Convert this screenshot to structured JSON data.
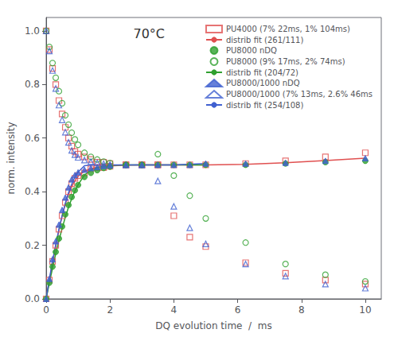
{
  "chart_data": {
    "type": "scatter",
    "annotation": "70°C",
    "xlabel": "DQ evolution time  /  ms",
    "ylabel": "norm. intensity",
    "xlim": [
      0,
      10.5
    ],
    "ylim": [
      0.0,
      1.05
    ],
    "xticks": [
      0,
      2,
      4,
      6,
      8,
      10
    ],
    "yticks": [
      {
        "value": 0.0,
        "label": "0.0"
      },
      0.2,
      0.4,
      0.6,
      0.8,
      {
        "value": 1.0,
        "label": "1.0"
      }
    ],
    "grid": false,
    "legend": "upper right",
    "series": [
      {
        "name": "PU4000 (7% 22ms, 1% 104ms)",
        "type": "scatter",
        "marker": "square-open",
        "color": "#e05050",
        "x": [
          0.0,
          0.1,
          0.2,
          0.3,
          0.4,
          0.5,
          0.6,
          0.7,
          0.8,
          0.9,
          1.0,
          1.2,
          1.4,
          1.6,
          1.8,
          2.0,
          2.5,
          3.0,
          3.5,
          4.0,
          4.5,
          5.0,
          6.25,
          7.5,
          8.75,
          10.0
        ],
        "values": [
          0.0,
          0.07,
          0.14,
          0.2,
          0.26,
          0.31,
          0.36,
          0.4,
          0.43,
          0.45,
          0.46,
          0.47,
          0.485,
          0.49,
          0.49,
          0.495,
          0.5,
          0.5,
          0.5,
          0.5,
          0.5,
          0.5,
          0.505,
          0.515,
          0.53,
          0.545
        ]
      },
      {
        "name": "PU4000 (7% 22ms, 1% 104ms)",
        "type": "scatter",
        "marker": "square-open",
        "color": "#e05050",
        "x": [
          0.0,
          0.1,
          0.2,
          0.3,
          0.4,
          0.5,
          0.6,
          0.7,
          0.8,
          0.9,
          1.0,
          1.2,
          1.4,
          1.6,
          1.8,
          2.0,
          2.5,
          3.0,
          3.5,
          4.0,
          4.5,
          5.0,
          6.25,
          7.5,
          8.75,
          10.0
        ],
        "values": [
          1.0,
          0.93,
          0.86,
          0.8,
          0.74,
          0.69,
          0.64,
          0.6,
          0.57,
          0.55,
          0.54,
          0.53,
          0.52,
          0.51,
          0.51,
          0.505,
          0.5,
          0.5,
          0.5,
          0.31,
          0.23,
          0.195,
          0.135,
          0.095,
          0.07,
          0.055
        ]
      },
      {
        "name": "distrib fit (261/111)",
        "type": "line",
        "line_style": "solid",
        "color": "#e05050",
        "x": [
          0.0,
          0.05,
          0.1,
          0.15,
          0.2,
          0.25,
          0.3,
          0.35,
          0.4,
          0.45,
          0.5,
          0.55,
          0.6,
          0.65,
          0.7,
          0.75,
          0.8,
          0.85,
          0.9,
          0.95,
          1.0,
          1.1,
          1.2,
          1.4,
          1.6,
          1.8,
          2.0,
          2.5,
          3.0,
          3.5,
          4.0,
          5.0,
          6.25,
          7.5,
          8.75,
          10.0
        ],
        "values": [
          0.0,
          0.035,
          0.068,
          0.1,
          0.135,
          0.165,
          0.195,
          0.225,
          0.255,
          0.283,
          0.308,
          0.331,
          0.353,
          0.372,
          0.389,
          0.404,
          0.418,
          0.43,
          0.44,
          0.449,
          0.457,
          0.468,
          0.476,
          0.486,
          0.491,
          0.494,
          0.496,
          0.499,
          0.5,
          0.5,
          0.5,
          0.5,
          0.502,
          0.508,
          0.516,
          0.525
        ]
      },
      {
        "name": "PU8000 nDQ",
        "type": "scatter",
        "marker": "circle",
        "color": "#30a030",
        "x": [
          0.0,
          0.1,
          0.2,
          0.3,
          0.4,
          0.5,
          0.6,
          0.7,
          0.8,
          0.9,
          1.0,
          1.2,
          1.4,
          1.6,
          1.8,
          2.0,
          2.5,
          3.0,
          3.5,
          4.0,
          4.5,
          5.0,
          6.25,
          7.5,
          8.75,
          10.0
        ],
        "values": [
          0.0,
          0.06,
          0.12,
          0.175,
          0.225,
          0.27,
          0.315,
          0.35,
          0.38,
          0.405,
          0.425,
          0.455,
          0.47,
          0.48,
          0.488,
          0.493,
          0.5,
          0.5,
          0.5,
          0.5,
          0.5,
          0.5,
          0.5,
          0.505,
          0.51,
          0.515
        ]
      },
      {
        "name": "PU8000 (9% 17ms, 2% 74ms)",
        "type": "scatter",
        "marker": "circle-open",
        "color": "#30a030",
        "x": [
          0.0,
          0.1,
          0.2,
          0.3,
          0.4,
          0.5,
          0.6,
          0.7,
          0.8,
          0.9,
          1.0,
          1.2,
          1.4,
          1.6,
          1.8,
          2.0,
          2.5,
          3.0,
          3.5,
          4.0,
          4.5,
          5.0,
          6.25,
          7.5,
          8.75,
          10.0
        ],
        "values": [
          1.0,
          0.94,
          0.88,
          0.825,
          0.775,
          0.73,
          0.685,
          0.65,
          0.62,
          0.595,
          0.575,
          0.545,
          0.53,
          0.52,
          0.512,
          0.507,
          0.5,
          0.5,
          0.54,
          0.46,
          0.385,
          0.3,
          0.21,
          0.13,
          0.09,
          0.065
        ]
      },
      {
        "name": "distrib fit (204/72)",
        "type": "line",
        "line_style": "solid",
        "color": "#30a030",
        "x": [
          0.0,
          0.05,
          0.1,
          0.15,
          0.2,
          0.25,
          0.3,
          0.4,
          0.5,
          0.6,
          0.7,
          0.8,
          0.9,
          1.0,
          1.2,
          1.4,
          1.6,
          1.8,
          2.0,
          2.5,
          3.0,
          3.5,
          4.0,
          5.0
        ],
        "values": [
          0.0,
          0.03,
          0.058,
          0.087,
          0.115,
          0.142,
          0.168,
          0.218,
          0.263,
          0.305,
          0.342,
          0.374,
          0.402,
          0.426,
          0.462,
          0.48,
          0.49,
          0.495,
          0.498,
          0.5,
          0.5,
          0.5,
          0.5,
          0.5
        ]
      },
      {
        "name": "PU8000/1000 nDQ",
        "type": "scatter",
        "marker": "triangle",
        "color": "#4060d0",
        "x": [
          0.0,
          0.1,
          0.2,
          0.3,
          0.4,
          0.5,
          0.6,
          0.7,
          0.8,
          0.9,
          1.0,
          1.2,
          1.4,
          1.6,
          1.8,
          2.0,
          2.5,
          3.0,
          3.5,
          4.0,
          4.5,
          5.0,
          6.25,
          7.5,
          8.75,
          10.0
        ],
        "values": [
          0.0,
          0.075,
          0.148,
          0.215,
          0.277,
          0.332,
          0.378,
          0.416,
          0.446,
          0.462,
          0.472,
          0.482,
          0.488,
          0.492,
          0.496,
          0.498,
          0.5,
          0.5,
          0.5,
          0.5,
          0.5,
          0.505,
          0.505,
          0.508,
          0.515,
          0.525
        ]
      },
      {
        "name": "PU8000/1000 (7% 13ms, 2.6% 46ms",
        "type": "scatter",
        "marker": "triangle-open",
        "color": "#4060d0",
        "x": [
          0.0,
          0.1,
          0.2,
          0.3,
          0.4,
          0.5,
          0.6,
          0.7,
          0.8,
          0.9,
          1.0,
          1.2,
          1.4,
          1.6,
          1.8,
          2.0,
          2.5,
          3.0,
          3.5,
          4.0,
          4.5,
          5.0,
          6.25,
          7.5,
          8.75,
          10.0
        ],
        "values": [
          1.0,
          0.925,
          0.852,
          0.785,
          0.723,
          0.668,
          0.622,
          0.584,
          0.554,
          0.538,
          0.528,
          0.518,
          0.512,
          0.508,
          0.504,
          0.502,
          0.5,
          0.5,
          0.44,
          0.345,
          0.265,
          0.205,
          0.13,
          0.085,
          0.055,
          0.04
        ]
      },
      {
        "name": "distrib fit (254/108)",
        "type": "line",
        "line_style": "solid",
        "color": "#4060d0",
        "x": [
          0.0,
          0.05,
          0.1,
          0.15,
          0.2,
          0.25,
          0.3,
          0.4,
          0.5,
          0.6,
          0.7,
          0.8,
          0.9,
          1.0,
          1.2,
          1.4,
          1.6,
          1.8,
          2.0,
          2.5,
          3.0,
          3.5,
          4.0,
          5.0
        ],
        "values": [
          0.0,
          0.038,
          0.074,
          0.108,
          0.141,
          0.173,
          0.203,
          0.26,
          0.311,
          0.357,
          0.396,
          0.428,
          0.454,
          0.473,
          0.497,
          0.499,
          0.5,
          0.5,
          0.5,
          0.5,
          0.5,
          0.5,
          0.5,
          0.505
        ]
      }
    ]
  }
}
